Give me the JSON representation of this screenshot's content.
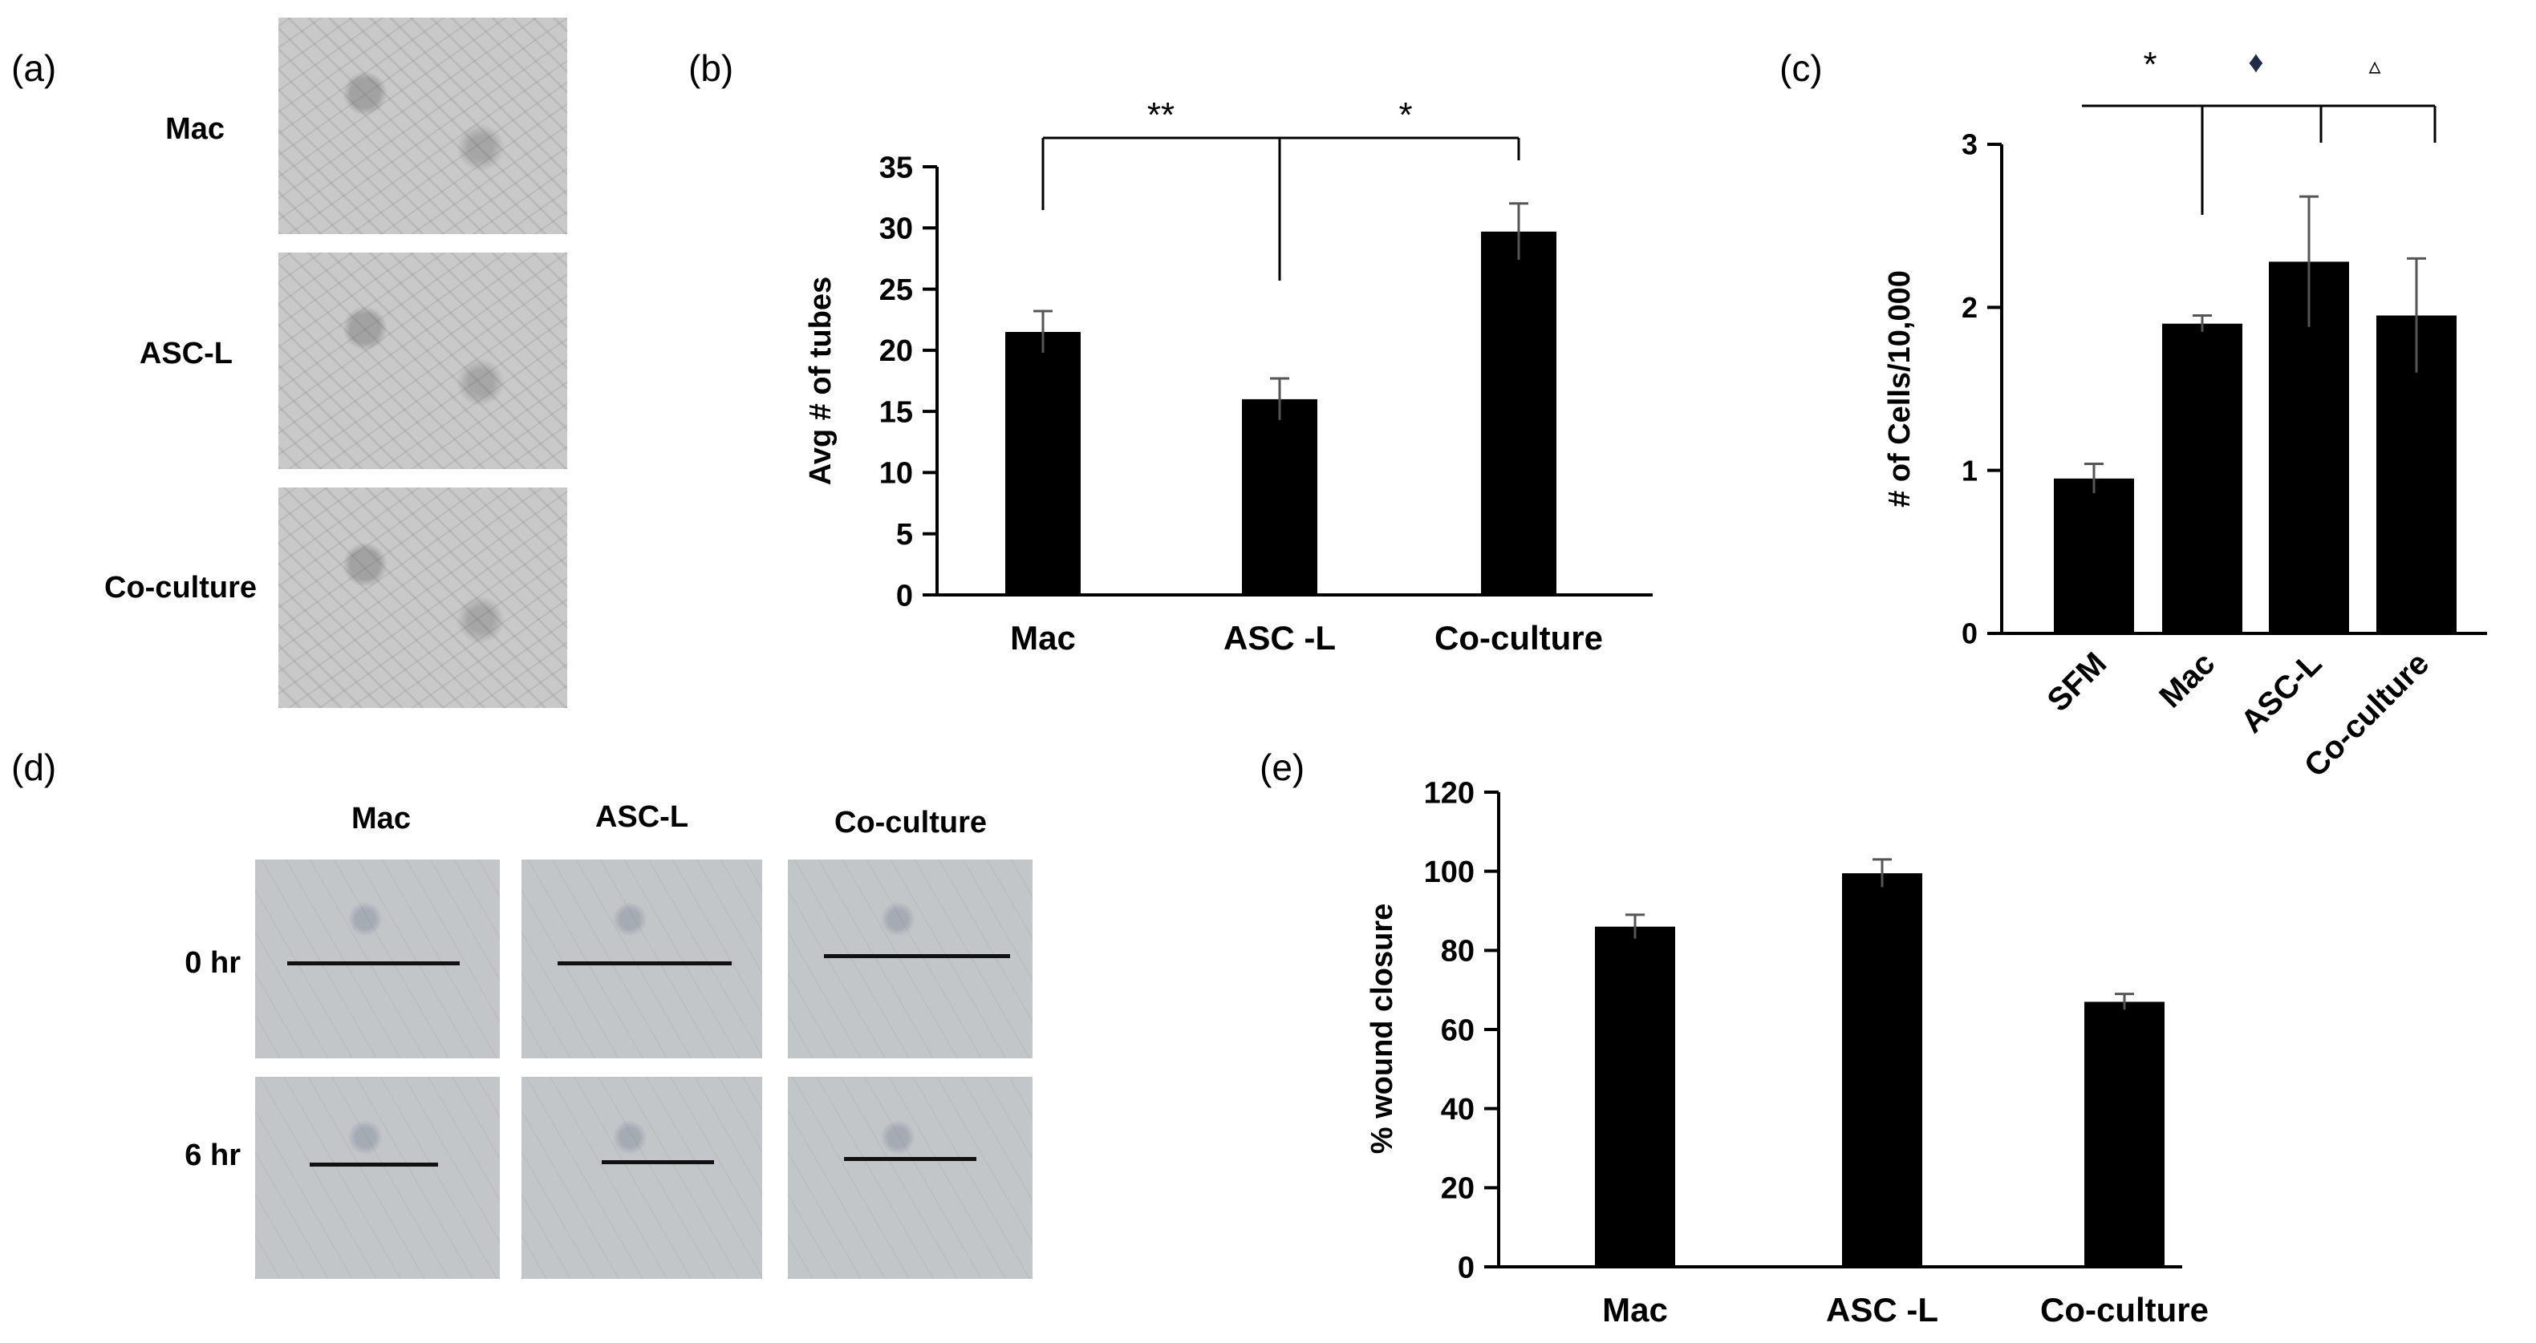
{
  "panel_letters": {
    "a": "(a)",
    "b": "(b)",
    "c": "(c)",
    "d": "(d)",
    "e": "(e)"
  },
  "panel_a": {
    "row_labels": [
      "Mac",
      "ASC-L",
      "Co-culture"
    ]
  },
  "panel_d": {
    "col_labels": [
      "Mac",
      "ASC-L",
      "Co-culture"
    ],
    "row_labels": [
      "0 hr",
      "6 hr"
    ]
  },
  "chart_data": [
    {
      "id": "b",
      "type": "bar",
      "categories": [
        "Mac",
        "ASC -L",
        "Co-culture"
      ],
      "values": [
        21.5,
        16.0,
        29.7
      ],
      "errors": [
        1.7,
        1.7,
        2.3
      ],
      "ylabel": "Avg # of tubes",
      "ylim": [
        0,
        35
      ],
      "yticks": [
        0,
        5,
        10,
        15,
        20,
        25,
        30,
        35
      ],
      "significance": [
        "**",
        "*"
      ]
    },
    {
      "id": "c",
      "type": "bar",
      "categories": [
        "SFM",
        "Mac",
        "ASC-L",
        "Co-culture"
      ],
      "values": [
        0.95,
        1.9,
        2.28,
        1.95
      ],
      "errors": [
        0.09,
        0.05,
        0.4,
        0.35
      ],
      "ylabel": "# of Cells/10,000",
      "ylim": [
        0,
        3
      ],
      "yticks": [
        0,
        1,
        2,
        3
      ],
      "significance": [
        "*",
        "♦",
        "▵"
      ]
    },
    {
      "id": "e",
      "type": "bar",
      "categories": [
        "Mac",
        "ASC -L",
        "Co-culture"
      ],
      "values": [
        86,
        99.5,
        67
      ],
      "errors": [
        3,
        3.5,
        2
      ],
      "ylabel": "% wound closure",
      "ylim": [
        0,
        120
      ],
      "yticks": [
        0,
        20,
        40,
        60,
        80,
        100,
        120
      ]
    }
  ]
}
